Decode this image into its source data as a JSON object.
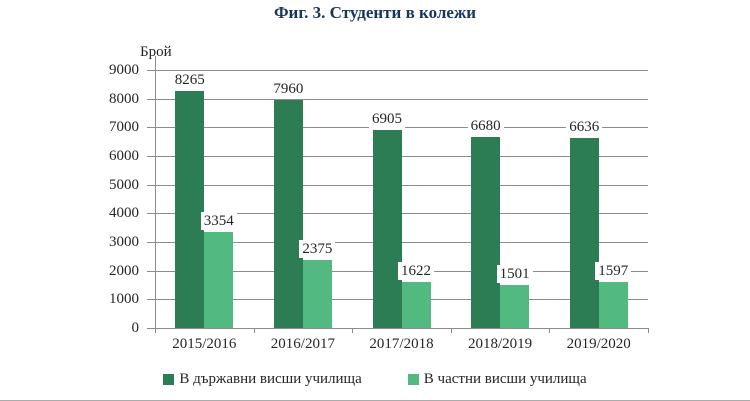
{
  "chart_data": {
    "type": "bar",
    "title": "Фиг. 3. Студенти в колежи",
    "ylabel": "Брой",
    "xlabel": "",
    "categories": [
      "2015/2016",
      "2016/2017",
      "2017/2018",
      "2018/2019",
      "2019/2020"
    ],
    "series": [
      {
        "name": "В държавни висши училища",
        "color": "#2D7D54",
        "values": [
          8265,
          7960,
          6905,
          6680,
          6636
        ]
      },
      {
        "name": "В частни висши училища",
        "color": "#52BA80",
        "values": [
          3354,
          2375,
          1622,
          1501,
          1597
        ]
      }
    ],
    "ylim": [
      0,
      9000
    ],
    "ytick_step": 1000,
    "grid": true,
    "legend_position": "bottom",
    "colors": {
      "grid": "#8C8C8C",
      "title": "#17365D",
      "text": "#262626"
    }
  }
}
